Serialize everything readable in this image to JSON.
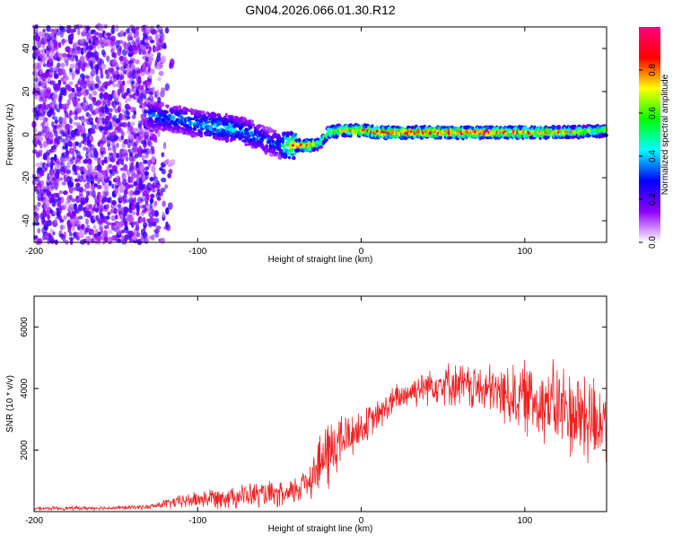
{
  "title": "GN04.2026.066.01.30.R12",
  "chart_data": [
    {
      "type": "heatmap",
      "xlabel": "Height of straight line (km)",
      "ylabel": "Frequency (Hz)",
      "xlim": [
        -200,
        150
      ],
      "ylim": [
        -50,
        50
      ],
      "x_ticks": [
        -200,
        -100,
        0,
        100
      ],
      "y_ticks": [
        -40,
        -20,
        0,
        20,
        40
      ],
      "colorbar": {
        "label": "Normalized spectral amplitude",
        "range": [
          0.0,
          1.0
        ],
        "ticks": [
          "0.0",
          "0.2",
          "0.4",
          "0.6",
          "0.8"
        ],
        "colors": [
          "#ffffff",
          "#8f00ff",
          "#0000ff",
          "#00ffff",
          "#00ff00",
          "#ffff00",
          "#ff0000",
          "#ff0080"
        ]
      },
      "noise_region": {
        "x_range": [
          -200,
          -130
        ],
        "freq_range": [
          -50,
          50
        ],
        "amplitude": 0.15
      },
      "ridge": {
        "x": [
          -130,
          -120,
          -110,
          -100,
          -90,
          -80,
          -70,
          -60,
          -50,
          -45,
          -40,
          -30,
          -25,
          -20,
          -10,
          0,
          10,
          20,
          40,
          60,
          80,
          100,
          120,
          140,
          150
        ],
        "freq": [
          9,
          8,
          7,
          5,
          4,
          3,
          1,
          -2,
          -5,
          -5,
          -5,
          -5,
          -4,
          1,
          2,
          2,
          1,
          1,
          1,
          1,
          1,
          1,
          1,
          1.5,
          2
        ],
        "amplitude": [
          0.35,
          0.38,
          0.4,
          0.42,
          0.45,
          0.45,
          0.4,
          0.35,
          0.35,
          0.75,
          0.9,
          0.9,
          0.55,
          0.7,
          0.8,
          0.85,
          0.95,
          0.95,
          0.95,
          0.95,
          0.95,
          0.9,
          0.85,
          0.7,
          0.7
        ]
      }
    },
    {
      "type": "line",
      "xlabel": "Height of straight line (km)",
      "ylabel": "SNR (10 * v/v)",
      "xlim": [
        -200,
        150
      ],
      "ylim": [
        0,
        7000
      ],
      "x_ticks": [
        -200,
        -100,
        0,
        100
      ],
      "y_ticks": [
        2000,
        4000,
        6000
      ],
      "series": [
        {
          "name": "SNR",
          "color": "#ee2222",
          "envelope": {
            "x": [
              -200,
              -150,
              -130,
              -120,
              -100,
              -80,
              -60,
              -45,
              -40,
              -30,
              -20,
              -15,
              -10,
              0,
              10,
              20,
              30,
              40,
              50,
              60,
              70,
              80,
              90,
              100,
              110,
              120,
              130,
              140,
              150
            ],
            "mean": [
              100,
              120,
              150,
              250,
              400,
              500,
              550,
              500,
              700,
              1200,
              1900,
              2200,
              2400,
              2700,
              3100,
              3600,
              3900,
              4100,
              4200,
              4100,
              4000,
              3900,
              3800,
              3700,
              3600,
              3400,
              3200,
              3000,
              3000
            ],
            "spread": [
              70,
              70,
              90,
              180,
              350,
              450,
              500,
              500,
              600,
              900,
              1500,
              1300,
              1000,
              700,
              600,
              600,
              600,
              700,
              800,
              850,
              900,
              1000,
              1200,
              1400,
              1500,
              1700,
              1800,
              2000,
              1600
            ]
          }
        }
      ]
    }
  ]
}
